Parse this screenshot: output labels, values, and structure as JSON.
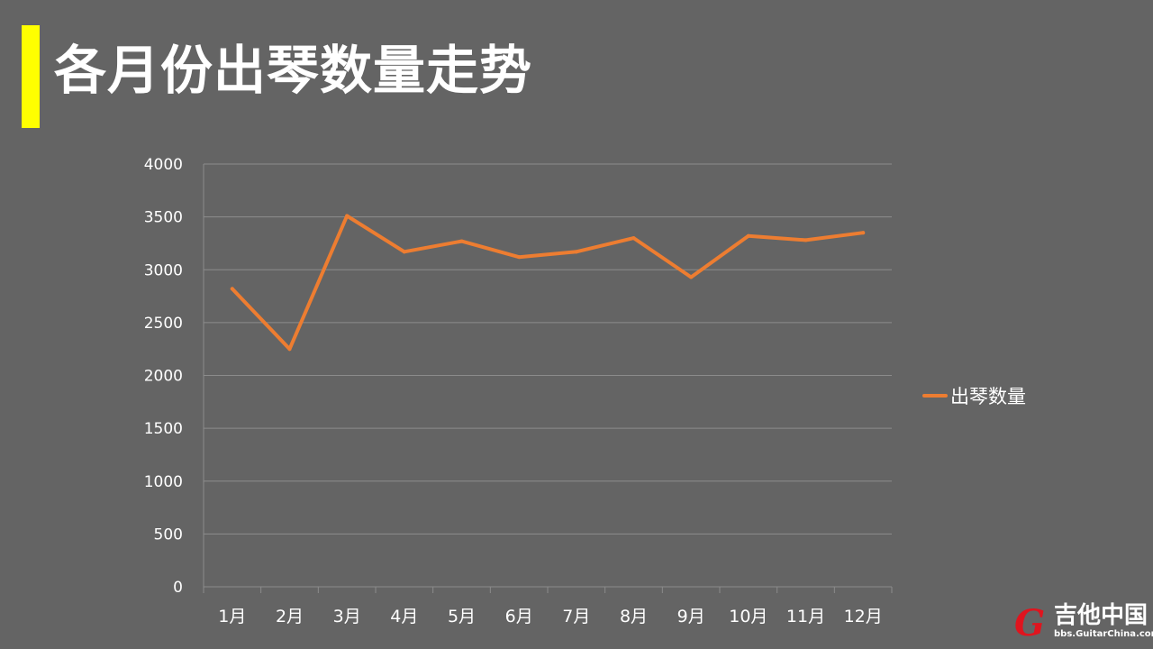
{
  "slide": {
    "title": "各月份出琴数量走势",
    "accent_color": "#ffff00"
  },
  "logo": {
    "mark": "G",
    "text": "吉他中国",
    "url": "bbs.GuitarChina.com"
  },
  "chart_data": {
    "type": "line",
    "categories": [
      "1月",
      "2月",
      "3月",
      "4月",
      "5月",
      "6月",
      "7月",
      "8月",
      "9月",
      "10月",
      "11月",
      "12月"
    ],
    "series": [
      {
        "name": "出琴数量",
        "color": "#ed7d31",
        "values": [
          2820,
          2250,
          3510,
          3170,
          3270,
          3120,
          3170,
          3300,
          2930,
          3320,
          3280,
          3350
        ]
      }
    ],
    "ylim": [
      0,
      4000
    ],
    "yticks": [
      0,
      500,
      1000,
      1500,
      2000,
      2500,
      3000,
      3500,
      4000
    ],
    "grid": true,
    "legend": "right"
  }
}
